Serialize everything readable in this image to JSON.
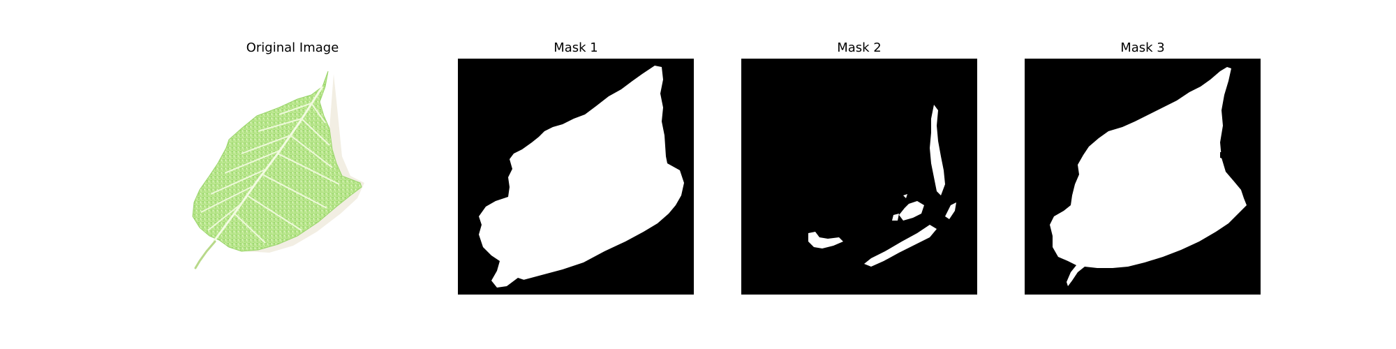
{
  "figure": {
    "panels": [
      {
        "title": "Original Image"
      },
      {
        "title": "Mask 1"
      },
      {
        "title": "Mask 2"
      },
      {
        "title": "Mask 3"
      }
    ],
    "colors": {
      "background": "#ffffff",
      "mask_background": "#000000",
      "mask_foreground": "#ffffff",
      "leaf_light": "#d8f2b6",
      "leaf_mid": "#a9e07a",
      "leaf_dark": "#7cc34e",
      "vein": "#f5fbe6",
      "shadow": "#efe9dc"
    }
  }
}
